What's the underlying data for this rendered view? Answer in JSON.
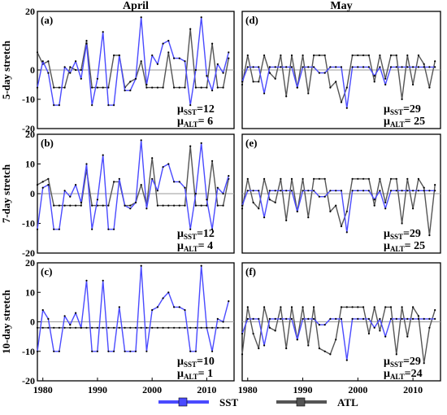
{
  "chart_data": [
    {
      "type": "line",
      "panel_label": "(a)",
      "column_title": "April",
      "ylabel": "5-day stretch",
      "ylim": [
        -20,
        20
      ],
      "y_ticks": [
        "20",
        "0",
        "-10",
        "-20"
      ],
      "xlim": [
        1979,
        2015
      ],
      "x_ticks": [],
      "mu_sst_label": "μ",
      "mu_sst_sub": "SST",
      "mu_sst_value": "=12",
      "mu_alt_label": "μ",
      "mu_alt_sub": "ALT",
      "mu_alt_value": "= 6",
      "series": [
        {
          "name": "SST",
          "color": "#4a4aff",
          "x": [
            1979,
            1980,
            1981,
            1982,
            1983,
            1984,
            1985,
            1986,
            1987,
            1988,
            1989,
            1990,
            1991,
            1992,
            1993,
            1994,
            1995,
            1996,
            1997,
            1998,
            1999,
            2000,
            2001,
            2002,
            2003,
            2004,
            2005,
            2006,
            2007,
            2008,
            2009,
            2010,
            2011,
            2012,
            2013,
            2014
          ],
          "values": [
            -6,
            3,
            -1,
            -12,
            -12,
            1,
            -1,
            3,
            -3,
            9,
            -12,
            -3,
            13,
            -12,
            -12,
            5,
            -7,
            -7,
            -3,
            18,
            -5,
            5,
            2,
            9,
            10,
            4,
            4,
            3,
            -12,
            0,
            18,
            -2,
            -7,
            2,
            -1,
            6
          ]
        },
        {
          "name": "ATL",
          "color": "#555555",
          "x": [
            1979,
            1980,
            1981,
            1982,
            1983,
            1984,
            1985,
            1986,
            1987,
            1988,
            1989,
            1990,
            1991,
            1992,
            1993,
            1994,
            1995,
            1996,
            1997,
            1998,
            1999,
            2000,
            2001,
            2002,
            2003,
            2004,
            2005,
            2006,
            2007,
            2008,
            2009,
            2010,
            2011,
            2012,
            2013,
            2014
          ],
          "values": [
            6,
            2,
            3,
            -6,
            -6,
            -6,
            1,
            0,
            0,
            10,
            -6,
            -6,
            -6,
            -6,
            5,
            5,
            -6,
            -4,
            -3,
            3,
            -6,
            -6,
            -6,
            -6,
            6,
            -6,
            -6,
            -6,
            14,
            -6,
            -6,
            -6,
            9,
            -6,
            -6,
            4
          ]
        }
      ]
    },
    {
      "type": "line",
      "panel_label": "(d)",
      "column_title": "May",
      "ylabel": "",
      "ylim": [
        -20,
        20
      ],
      "y_ticks": [],
      "xlim": [
        1979,
        2015
      ],
      "x_ticks": [],
      "mu_sst_label": "μ",
      "mu_sst_sub": "SST",
      "mu_sst_value": "=29",
      "mu_alt_label": "μ",
      "mu_alt_sub": "ALT",
      "mu_alt_value": "= 25",
      "series": [
        {
          "name": "SST",
          "color": "#4a4aff",
          "x": [
            1979,
            1980,
            1981,
            1982,
            1983,
            1984,
            1985,
            1986,
            1987,
            1988,
            1989,
            1990,
            1991,
            1992,
            1993,
            1994,
            1995,
            1996,
            1997,
            1998,
            1999,
            2000,
            2001,
            2002,
            2003,
            2004,
            2005,
            2006,
            2007,
            2008,
            2009,
            2010,
            2011,
            2012,
            2013,
            2014
          ],
          "values": [
            -4,
            1,
            1,
            1,
            -8,
            1,
            1,
            1,
            1,
            1,
            -6,
            1,
            1,
            1,
            -1,
            -1,
            1,
            1,
            1,
            -13,
            1,
            1,
            1,
            1,
            -2,
            1,
            -5,
            1,
            1,
            1,
            1,
            1,
            1,
            1,
            1,
            1
          ]
        },
        {
          "name": "ATL",
          "color": "#555555",
          "x": [
            1979,
            1980,
            1981,
            1982,
            1983,
            1984,
            1985,
            1986,
            1987,
            1988,
            1989,
            1990,
            1991,
            1992,
            1993,
            1994,
            1995,
            1996,
            1997,
            1998,
            1999,
            2000,
            2001,
            2002,
            2003,
            2004,
            2005,
            2006,
            2007,
            2008,
            2009,
            2010,
            2011,
            2012,
            2013,
            2014
          ],
          "values": [
            -5,
            5,
            -4,
            -4,
            5,
            -1,
            -3,
            5,
            -9,
            5,
            -6,
            5,
            -8,
            5,
            5,
            5,
            -6,
            -4,
            -11,
            -6,
            5,
            5,
            5,
            5,
            -4,
            5,
            -3,
            5,
            5,
            -10,
            5,
            -5,
            5,
            2,
            -6,
            3
          ]
        }
      ]
    },
    {
      "type": "line",
      "panel_label": "(b)",
      "column_title": "",
      "ylabel": "7-day stretch",
      "ylim": [
        -20,
        20
      ],
      "y_ticks": [
        "20",
        "10",
        "0",
        "-10",
        "-20"
      ],
      "xlim": [
        1979,
        2015
      ],
      "x_ticks": [],
      "mu_sst_label": "μ",
      "mu_sst_sub": "SST",
      "mu_sst_value": "=12",
      "mu_alt_label": "μ",
      "mu_alt_sub": "ALT",
      "mu_alt_value": "= 4",
      "series": [
        {
          "name": "SST",
          "color": "#4a4aff",
          "x": [
            1979,
            1980,
            1981,
            1982,
            1983,
            1984,
            1985,
            1986,
            1987,
            1988,
            1989,
            1990,
            1991,
            1992,
            1993,
            1994,
            1995,
            1996,
            1997,
            1998,
            1999,
            2000,
            2001,
            2002,
            2003,
            2004,
            2005,
            2006,
            2007,
            2008,
            2009,
            2010,
            2011,
            2012,
            2013,
            2014
          ],
          "values": [
            -12,
            2,
            3,
            -12,
            -12,
            1,
            -1,
            3,
            -3,
            10,
            -12,
            -2,
            13,
            -12,
            -12,
            5,
            -4,
            -5,
            -3,
            18,
            -5,
            5,
            1,
            9,
            10,
            4,
            4,
            2,
            -12,
            0,
            17,
            -2,
            -12,
            2,
            0,
            6
          ]
        },
        {
          "name": "ATL",
          "color": "#555555",
          "x": [
            1979,
            1980,
            1981,
            1982,
            1983,
            1984,
            1985,
            1986,
            1987,
            1988,
            1989,
            1990,
            1991,
            1992,
            1993,
            1994,
            1995,
            1996,
            1997,
            1998,
            1999,
            2000,
            2001,
            2002,
            2003,
            2004,
            2005,
            2006,
            2007,
            2008,
            2009,
            2010,
            2011,
            2012,
            2013,
            2014
          ],
          "values": [
            3,
            4,
            5,
            -4,
            -4,
            -4,
            -4,
            -4,
            -4,
            8,
            -4,
            -4,
            -4,
            -4,
            4,
            4,
            -4,
            -4,
            -3,
            3,
            -4,
            12,
            -4,
            -4,
            -4,
            -4,
            -4,
            -4,
            16,
            -4,
            -4,
            -4,
            11,
            -4,
            -4,
            5
          ]
        }
      ]
    },
    {
      "type": "line",
      "panel_label": "(e)",
      "column_title": "",
      "ylabel": "",
      "ylim": [
        -20,
        20
      ],
      "y_ticks": [],
      "xlim": [
        1979,
        2015
      ],
      "x_ticks": [],
      "mu_sst_label": "μ",
      "mu_sst_sub": "SST",
      "mu_sst_value": "=29",
      "mu_alt_label": "μ",
      "mu_alt_sub": "ALT",
      "mu_alt_value": "= 25",
      "series": [
        {
          "name": "SST",
          "color": "#4a4aff",
          "x": [
            1979,
            1980,
            1981,
            1982,
            1983,
            1984,
            1985,
            1986,
            1987,
            1988,
            1989,
            1990,
            1991,
            1992,
            1993,
            1994,
            1995,
            1996,
            1997,
            1998,
            1999,
            2000,
            2001,
            2002,
            2003,
            2004,
            2005,
            2006,
            2007,
            2008,
            2009,
            2010,
            2011,
            2012,
            2013,
            2014
          ],
          "values": [
            -4,
            1,
            1,
            1,
            -8,
            1,
            1,
            1,
            1,
            1,
            -6,
            1,
            1,
            1,
            -1,
            -1,
            1,
            1,
            1,
            -13,
            1,
            1,
            1,
            1,
            -2,
            1,
            -5,
            1,
            1,
            1,
            1,
            1,
            1,
            1,
            1,
            1
          ]
        },
        {
          "name": "ATL",
          "color": "#555555",
          "x": [
            1979,
            1980,
            1981,
            1982,
            1983,
            1984,
            1985,
            1986,
            1987,
            1988,
            1989,
            1990,
            1991,
            1992,
            1993,
            1994,
            1995,
            1996,
            1997,
            1998,
            1999,
            2000,
            2001,
            2002,
            2003,
            2004,
            2005,
            2006,
            2007,
            2008,
            2009,
            2010,
            2011,
            2012,
            2013,
            2014
          ],
          "values": [
            -5,
            5,
            -3,
            -5,
            5,
            -2,
            -3,
            5,
            -9,
            5,
            -6,
            5,
            -8,
            5,
            5,
            5,
            -6,
            -4,
            -11,
            -6,
            5,
            5,
            5,
            5,
            -4,
            5,
            -3,
            5,
            5,
            -10,
            5,
            -5,
            5,
            2,
            -14,
            3
          ]
        }
      ]
    },
    {
      "type": "line",
      "panel_label": "(c)",
      "column_title": "",
      "ylabel": "10-day stretch",
      "ylim": [
        -20,
        20
      ],
      "y_ticks": [
        "20",
        "10",
        "0",
        "-10",
        "-20"
      ],
      "xlim": [
        1979,
        2015
      ],
      "x_ticks": [
        "1980",
        "1990",
        "2000",
        "2010"
      ],
      "mu_sst_label": "μ",
      "mu_sst_sub": "SST",
      "mu_sst_value": "=10",
      "mu_alt_label": "μ",
      "mu_alt_sub": "ALT",
      "mu_alt_value": "= 1",
      "series": [
        {
          "name": "SST",
          "color": "#4a4aff",
          "x": [
            1979,
            1980,
            1981,
            1982,
            1983,
            1984,
            1985,
            1986,
            1987,
            1988,
            1989,
            1990,
            1991,
            1992,
            1993,
            1994,
            1995,
            1996,
            1997,
            1998,
            1999,
            2000,
            2001,
            2002,
            2003,
            2004,
            2005,
            2006,
            2007,
            2008,
            2009,
            2010,
            2011,
            2012,
            2013,
            2014
          ],
          "values": [
            -10,
            4,
            1,
            -10,
            -10,
            2,
            -1,
            3,
            -2,
            14,
            -10,
            -10,
            14,
            -10,
            -10,
            5,
            -10,
            -10,
            -10,
            19,
            -10,
            4,
            5,
            8,
            10,
            5,
            5,
            4,
            -10,
            -10,
            19,
            -2,
            -10,
            1,
            0,
            7
          ]
        },
        {
          "name": "ATL",
          "color": "#555555",
          "x": [
            1979,
            1980,
            1981,
            1982,
            1983,
            1984,
            1985,
            1986,
            1987,
            1988,
            1989,
            1990,
            1991,
            1992,
            1993,
            1994,
            1995,
            1996,
            1997,
            1998,
            1999,
            2000,
            2001,
            2002,
            2003,
            2004,
            2005,
            2006,
            2007,
            2008,
            2009,
            2010,
            2011,
            2012,
            2013,
            2014
          ],
          "values": [
            -2,
            -2,
            -2,
            -2,
            -2,
            -2,
            -2,
            -2,
            -2,
            -2,
            -2,
            -2,
            -2,
            -2,
            -2,
            -2,
            -2,
            -2,
            -2,
            -2,
            -2,
            -2,
            -2,
            -2,
            -2,
            -2,
            -2,
            -2,
            -2,
            -2,
            -2,
            -2,
            -2,
            -2,
            -2,
            -2
          ]
        }
      ]
    },
    {
      "type": "line",
      "panel_label": "(f)",
      "column_title": "",
      "ylabel": "",
      "ylim": [
        -20,
        20
      ],
      "y_ticks": [],
      "xlim": [
        1979,
        2015
      ],
      "x_ticks": [
        "1980",
        "1990",
        "2000",
        "2010"
      ],
      "mu_sst_label": "μ",
      "mu_sst_sub": "SST",
      "mu_sst_value": "=29",
      "mu_alt_label": "μ",
      "mu_alt_sub": "ALT",
      "mu_alt_value": "=24",
      "series": [
        {
          "name": "SST",
          "color": "#4a4aff",
          "x": [
            1979,
            1980,
            1981,
            1982,
            1983,
            1984,
            1985,
            1986,
            1987,
            1988,
            1989,
            1990,
            1991,
            1992,
            1993,
            1994,
            1995,
            1996,
            1997,
            1998,
            1999,
            2000,
            2001,
            2002,
            2003,
            2004,
            2005,
            2006,
            2007,
            2008,
            2009,
            2010,
            2011,
            2012,
            2013,
            2014
          ],
          "values": [
            -4,
            1,
            1,
            1,
            -8,
            1,
            1,
            1,
            1,
            1,
            -6,
            1,
            1,
            1,
            -1,
            -1,
            1,
            1,
            1,
            -13,
            1,
            1,
            1,
            1,
            -2,
            1,
            -5,
            1,
            1,
            1,
            1,
            1,
            1,
            1,
            1,
            1
          ]
        },
        {
          "name": "ATL",
          "color": "#555555",
          "x": [
            1979,
            1980,
            1981,
            1982,
            1983,
            1984,
            1985,
            1986,
            1987,
            1988,
            1989,
            1990,
            1991,
            1992,
            1993,
            1994,
            1995,
            1996,
            1997,
            1998,
            1999,
            2000,
            2001,
            2002,
            2003,
            2004,
            2005,
            2006,
            2007,
            2008,
            2009,
            2010,
            2011,
            2012,
            2013,
            2014
          ],
          "values": [
            -11,
            5,
            -4,
            -9,
            5,
            -2,
            -3,
            5,
            -9,
            5,
            -6,
            5,
            -8,
            5,
            -9,
            -10,
            -11,
            -6,
            5,
            5,
            5,
            5,
            5,
            -4,
            5,
            -3,
            5,
            5,
            -11,
            5,
            -5,
            5,
            2,
            -14,
            -2,
            4
          ]
        }
      ]
    }
  ],
  "legend": [
    {
      "name": "SST",
      "color": "#4a4aff"
    },
    {
      "name": "ATL",
      "color": "#555555"
    }
  ]
}
